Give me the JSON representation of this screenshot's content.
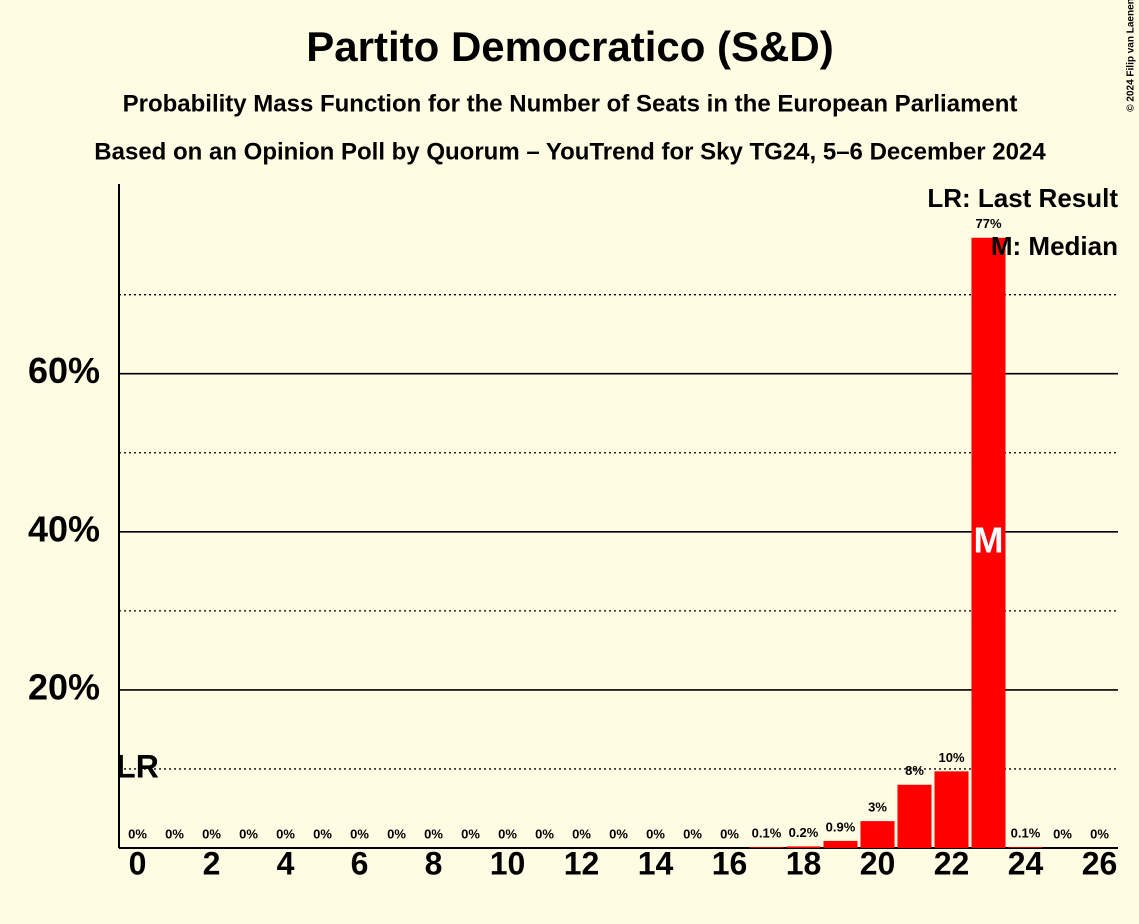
{
  "chart_data": {
    "type": "bar",
    "title": "Partito Democratico (S&D)",
    "subtitle": "Probability Mass Function for the Number of Seats in the European Parliament",
    "subtitle2": "Based on an Opinion Poll by Quorum – YouTrend for Sky TG24, 5–6 December 2024",
    "copyright": "© 2024 Filip van Laenen",
    "x": [
      0,
      1,
      2,
      3,
      4,
      5,
      6,
      7,
      8,
      9,
      10,
      11,
      12,
      13,
      14,
      15,
      16,
      17,
      18,
      19,
      20,
      21,
      22,
      23,
      24,
      25,
      26
    ],
    "values": [
      0,
      0,
      0,
      0,
      0,
      0,
      0,
      0,
      0,
      0,
      0,
      0,
      0,
      0,
      0,
      0,
      0,
      0.1,
      0.2,
      0.9,
      3.4,
      8,
      9.7,
      77.2,
      0.1,
      0,
      0
    ],
    "value_labels": [
      "0%",
      "0%",
      "0%",
      "0%",
      "0%",
      "0%",
      "0%",
      "0%",
      "0%",
      "0%",
      "0%",
      "0%",
      "0%",
      "0%",
      "0%",
      "0%",
      "0%",
      "0.1%",
      "0.2%",
      "0.9%",
      "3%",
      "8%",
      "10%",
      "77%",
      "0.1%",
      "0%",
      "0%"
    ],
    "color": "#ff0000",
    "xlim": [
      -0.5,
      26.5
    ],
    "xticks": [
      0,
      2,
      4,
      6,
      8,
      10,
      12,
      14,
      16,
      18,
      20,
      22,
      24,
      26
    ],
    "ylim": [
      0,
      84
    ],
    "yticks": [
      {
        "value": 20,
        "label": "20%"
      },
      {
        "value": 40,
        "label": "40%"
      },
      {
        "value": 60,
        "label": "60%"
      }
    ],
    "yminorticks": [
      10,
      30,
      50,
      70
    ],
    "grid": true,
    "last_result": {
      "x": 0,
      "label": "LR"
    },
    "median": {
      "x": 23,
      "label": "M"
    },
    "legend": [
      "LR: Last Result",
      "M: Median"
    ]
  }
}
